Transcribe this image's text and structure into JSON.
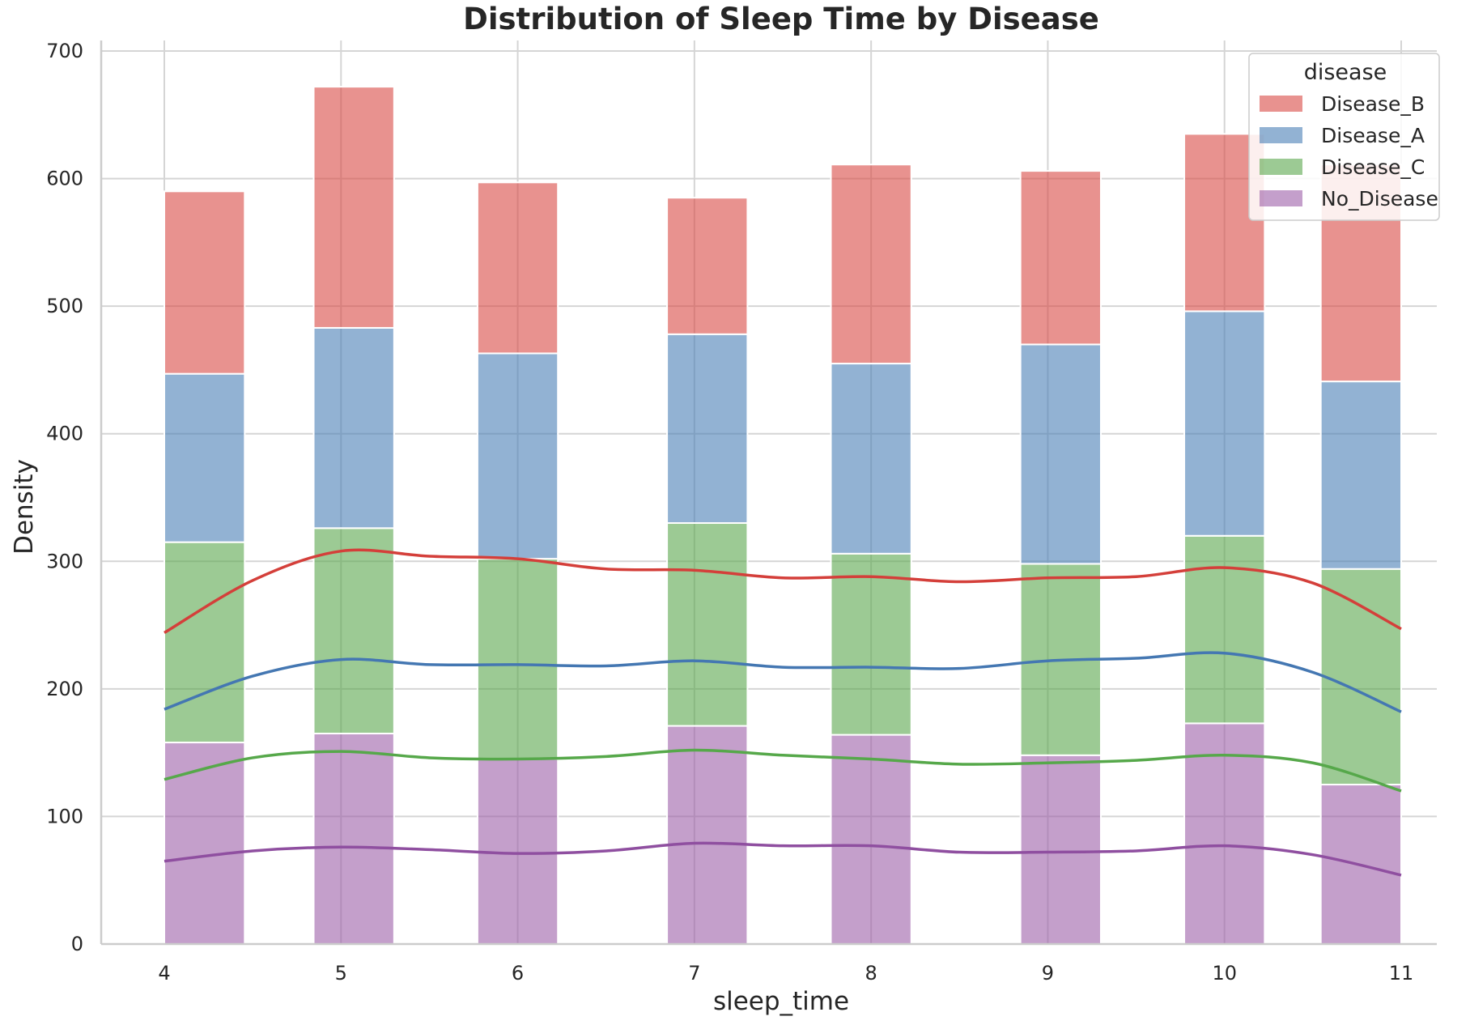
{
  "chart_data": {
    "type": "bar",
    "stacked": true,
    "title": "Distribution of Sleep Time by Disease",
    "xlabel": "sleep_time",
    "ylabel": "Density",
    "x": [
      4,
      5,
      6,
      7,
      8,
      9,
      10,
      11
    ],
    "x_ticks": [
      "4",
      "5",
      "6",
      "7",
      "8",
      "9",
      "10",
      "11"
    ],
    "ylim": [
      0,
      700
    ],
    "y_ticks": [
      "0",
      "100",
      "200",
      "300",
      "400",
      "500",
      "600",
      "700"
    ],
    "grid": true,
    "legend": {
      "title": "disease",
      "placement": "top-right",
      "entries": [
        "Disease_B",
        "Disease_A",
        "Disease_C",
        "No_Disease"
      ]
    },
    "series": [
      {
        "name": "No_Disease",
        "color": "#9c5fa8",
        "values": [
          158,
          165,
          145,
          171,
          164,
          148,
          173,
          125
        ]
      },
      {
        "name": "Disease_C",
        "color": "#5aa64d",
        "values": [
          157,
          161,
          157,
          159,
          142,
          150,
          147,
          169
        ]
      },
      {
        "name": "Disease_A",
        "color": "#4a7fb5",
        "values": [
          132,
          157,
          161,
          148,
          149,
          172,
          176,
          147
        ]
      },
      {
        "name": "Disease_B",
        "color": "#d94a45",
        "values": [
          143,
          189,
          134,
          107,
          156,
          136,
          139,
          170
        ]
      }
    ],
    "kde_lines": [
      {
        "name": "Disease_B",
        "color": "#d43f3a",
        "x": [
          4,
          4.5,
          5,
          5.5,
          6,
          6.5,
          7,
          7.5,
          8,
          8.5,
          9,
          9.5,
          10,
          10.5,
          11
        ],
        "y": [
          244,
          285,
          308,
          304,
          302,
          294,
          293,
          287,
          288,
          284,
          287,
          288,
          295,
          283,
          247
        ]
      },
      {
        "name": "Disease_A",
        "color": "#4477b2",
        "x": [
          4,
          4.5,
          5,
          5.5,
          6,
          6.5,
          7,
          7.5,
          8,
          8.5,
          9,
          9.5,
          10,
          10.5,
          11
        ],
        "y": [
          184,
          210,
          223,
          219,
          219,
          218,
          222,
          217,
          217,
          216,
          222,
          224,
          228,
          213,
          182
        ]
      },
      {
        "name": "Disease_C",
        "color": "#56a84a",
        "x": [
          4,
          4.5,
          5,
          5.5,
          6,
          6.5,
          7,
          7.5,
          8,
          8.5,
          9,
          9.5,
          10,
          10.5,
          11
        ],
        "y": [
          129,
          146,
          151,
          146,
          145,
          147,
          152,
          148,
          145,
          141,
          142,
          144,
          148,
          142,
          120
        ]
      },
      {
        "name": "No_Disease",
        "color": "#8f4fa0",
        "x": [
          4,
          4.5,
          5,
          5.5,
          6,
          6.5,
          7,
          7.5,
          8,
          8.5,
          9,
          9.5,
          10,
          10.5,
          11
        ],
        "y": [
          65,
          73,
          76,
          74,
          71,
          73,
          79,
          77,
          77,
          72,
          72,
          73,
          77,
          70,
          54
        ]
      }
    ]
  }
}
